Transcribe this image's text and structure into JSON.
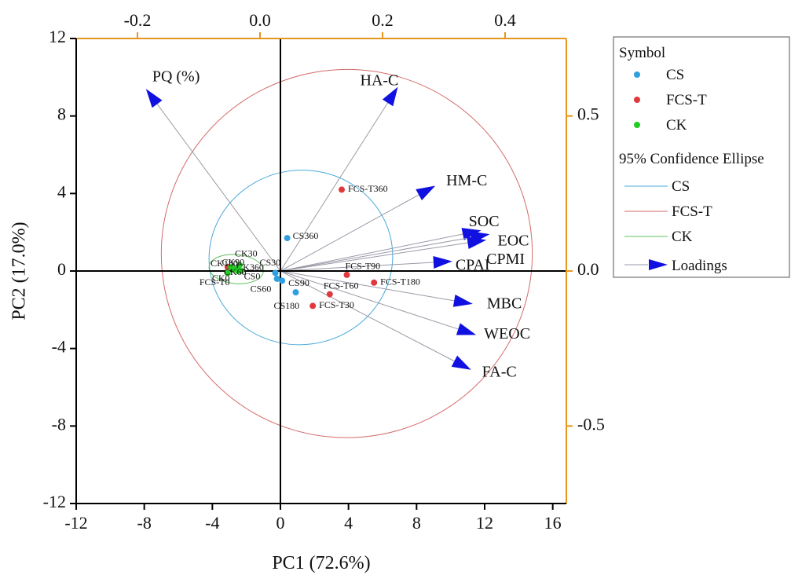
{
  "chart_data": {
    "type": "scatter",
    "xlabel": "PC1 (72.6%)",
    "ylabel": "PC2 (17.0%)",
    "xlim": [
      -12,
      16.8
    ],
    "ylim": [
      -12,
      12
    ],
    "x_ticks": [
      -12,
      -8,
      -4,
      0,
      4,
      8,
      12,
      16
    ],
    "y_ticks": [
      -12,
      -8,
      -4,
      0,
      4,
      8,
      12
    ],
    "top_xlim": [
      -0.3,
      0.5
    ],
    "top_ticks": [
      -0.2,
      0.0,
      0.2,
      0.4
    ],
    "right_ylim": [
      -0.75,
      0.75
    ],
    "right_ticks": [
      0.5,
      0.0,
      -0.5
    ],
    "top_tick_labels": [
      "-0.2",
      "0.0",
      "0.2",
      "0.4"
    ],
    "right_tick_labels": [
      "0.5",
      "0.0",
      "-0.5"
    ],
    "axis_color": "#e6951f",
    "legend": {
      "title": "Symbol",
      "entries": [
        {
          "label": "CS",
          "color": "#2f9fe0",
          "kind": "point"
        },
        {
          "label": "FCS-T",
          "color": "#e0383d",
          "kind": "point"
        },
        {
          "label": "CK",
          "color": "#22cc22",
          "kind": "point"
        }
      ],
      "ellipse_title": "95% Confidence Ellipse",
      "ellipse_entries": [
        {
          "label": "CS",
          "color": "#4aa8d8"
        },
        {
          "label": "FCS-T",
          "color": "#d46a6a"
        },
        {
          "label": "CK",
          "color": "#5cc05c"
        }
      ],
      "loadings_label": "Loadings"
    },
    "series": [
      {
        "name": "CS",
        "color": "#2f9fe0",
        "points": [
          {
            "label": "CS360",
            "x": 0.4,
            "y": 1.7
          },
          {
            "label": "CS30",
            "x": -0.3,
            "y": -0.1
          },
          {
            "label": "CS90",
            "x": 0.1,
            "y": -0.5
          },
          {
            "label": "CS180",
            "x": 0.9,
            "y": -1.1
          },
          {
            "label": "CS0",
            "x": -2.6,
            "y": 0.1
          },
          {
            "label": "CS60",
            "x": -0.2,
            "y": -0.4
          }
        ]
      },
      {
        "name": "FCS-T",
        "color": "#e0383d",
        "points": [
          {
            "label": "FCS-T360",
            "x": 3.6,
            "y": 4.2
          },
          {
            "label": "FCS-T90",
            "x": 3.9,
            "y": -0.2
          },
          {
            "label": "FCS-T180",
            "x": 5.5,
            "y": -0.6
          },
          {
            "label": "FCS-T60",
            "x": 2.9,
            "y": -1.2
          },
          {
            "label": "FCS-T30",
            "x": 1.9,
            "y": -1.8
          },
          {
            "label": "FCS-T0",
            "x": -3.1,
            "y": 0.2
          }
        ]
      },
      {
        "name": "CK",
        "color": "#22cc22",
        "points": [
          {
            "label": "CK30",
            "x": -2.4,
            "y": 0.3
          },
          {
            "label": "CK90",
            "x": -2.7,
            "y": 0.1
          },
          {
            "label": "CK0",
            "x": -3.1,
            "y": -0.1
          },
          {
            "label": "CK360",
            "x": -2.3,
            "y": 0.0
          },
          {
            "label": "CK180",
            "x": -2.9,
            "y": 0.2
          },
          {
            "label": "CK60",
            "x": -2.5,
            "y": 0.0
          }
        ]
      }
    ],
    "ellipses": [
      {
        "name": "CS",
        "color": "#4aa8d8",
        "cx": 1.2,
        "cy": 0.7,
        "rx": 5.4,
        "ry": 4.5,
        "angle": -8
      },
      {
        "name": "FCS-T",
        "color": "#d46a6a",
        "cx": 3.9,
        "cy": 0.9,
        "rx": 10.9,
        "ry": 9.5,
        "angle": -5
      },
      {
        "name": "CK",
        "color": "#5cc05c",
        "cx": -2.6,
        "cy": 0.1,
        "rx": 1.6,
        "ry": 0.75,
        "angle": 5
      }
    ],
    "loadings": [
      {
        "label": "PQ (%)",
        "x": -7.9,
        "y": 9.4
      },
      {
        "label": "HA-C",
        "x": 6.9,
        "y": 9.5
      },
      {
        "label": "HM-C",
        "x": 9.1,
        "y": 4.4
      },
      {
        "label": "SOC",
        "x": 11.8,
        "y": 2.1
      },
      {
        "label": "EOC",
        "x": 12.3,
        "y": 1.9
      },
      {
        "label": "CPMI",
        "x": 12.1,
        "y": 1.6
      },
      {
        "label": "CPAI",
        "x": 10.1,
        "y": 0.5
      },
      {
        "label": "MBC",
        "x": 11.3,
        "y": -1.7
      },
      {
        "label": "WEOC",
        "x": 11.5,
        "y": -3.3
      },
      {
        "label": "FA-C",
        "x": 11.2,
        "y": -5.1
      }
    ]
  }
}
